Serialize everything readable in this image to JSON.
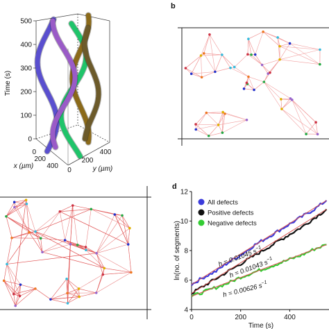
{
  "panel_labels": {
    "b": "b",
    "d": "d"
  },
  "panel_a": {
    "z_axis_label": "Time (s)",
    "z_ticks": [
      "0",
      "100",
      "200",
      "300",
      "400",
      "500"
    ],
    "x_axis_label": "x (µm)",
    "x_ticks": [
      "0",
      "200",
      "400"
    ],
    "y_axis_label": "y (µm)",
    "y_ticks": [
      "0",
      "200",
      "400"
    ],
    "tube_colors": [
      "#5a4fcf",
      "#1fc46a",
      "#8b6a1a",
      "#9a5bc7",
      "#6c5a2a"
    ]
  },
  "panel_b": {
    "point_colors": [
      "#2233cc",
      "#e0b000",
      "#22aa44",
      "#cc3344",
      "#9966cc",
      "#ee7722",
      "#33bbdd"
    ],
    "edge_color": "#f2a0a0"
  },
  "panel_c": {
    "edge_color": "#e05050"
  },
  "chart_data": {
    "type": "line",
    "xlabel": "Time (s)",
    "ylabel": "ln(no. of segments)",
    "xlim": [
      0,
      560
    ],
    "ylim": [
      4,
      12
    ],
    "x_ticks": [
      "0",
      "200",
      "400"
    ],
    "y_ticks": [
      "4",
      "6",
      "8",
      "10",
      "12"
    ],
    "legend_placement": "top-left",
    "series": [
      {
        "name": "All defects",
        "color": "#3b3bdb",
        "fit_color": "#d9534f",
        "x": [
          0,
          50,
          100,
          150,
          200,
          250,
          300,
          350,
          400,
          450,
          500,
          550
        ],
        "values": [
          5.7,
          6.2,
          6.6,
          7.2,
          7.7,
          8.3,
          8.8,
          9.3,
          9.8,
          10.3,
          10.8,
          11.4
        ]
      },
      {
        "name": "Positive defects",
        "color": "#111111",
        "fit_color": "#d9534f",
        "x": [
          0,
          50,
          100,
          150,
          200,
          250,
          300,
          350,
          400,
          450,
          500,
          550
        ],
        "values": [
          5.1,
          5.6,
          6.1,
          6.6,
          7.1,
          7.6,
          8.1,
          8.6,
          9.1,
          9.6,
          10.2,
          10.8
        ]
      },
      {
        "name": "Negative defects",
        "color": "#33cc33",
        "fit_color": "#d9534f",
        "x": [
          0,
          50,
          100,
          150,
          200,
          250,
          300,
          350,
          400,
          450,
          500,
          550
        ],
        "values": [
          4.9,
          5.2,
          5.5,
          5.8,
          6.2,
          6.5,
          6.8,
          7.1,
          7.4,
          7.7,
          8.1,
          8.4
        ]
      }
    ],
    "annotations": [
      {
        "text": "h = 0.01045 s",
        "superscript": "−1",
        "series": "All defects"
      },
      {
        "text": "h = 0.01043 s",
        "superscript": "−1",
        "series": "Positive defects"
      },
      {
        "text": "h = 0.00626 s",
        "superscript": "−1",
        "series": "Negative defects"
      }
    ]
  }
}
